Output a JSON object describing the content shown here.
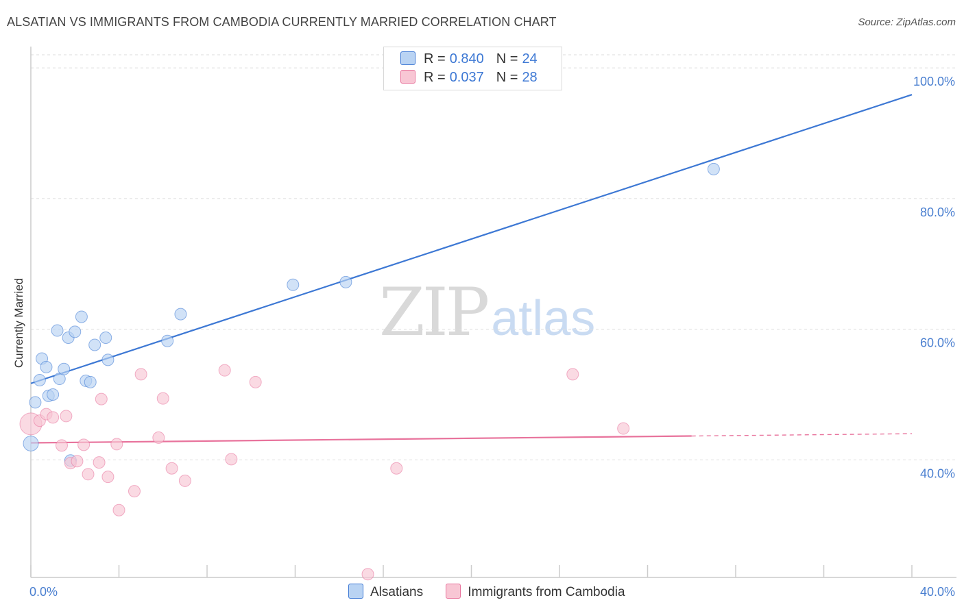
{
  "title": "ALSATIAN VS IMMIGRANTS FROM CAMBODIA CURRENTLY MARRIED CORRELATION CHART",
  "source": "Source: ZipAtlas.com",
  "watermark": {
    "zip": "ZIP",
    "atlas": "atlas"
  },
  "colors": {
    "blue": "#3d78d4",
    "blue_fill": "#b9d3f3",
    "pink": "#e8739c",
    "pink_fill": "#f8c6d4",
    "grid": "#dddddd"
  },
  "legend": {
    "rows": [
      {
        "r_label": "R =",
        "r_value": "0.840",
        "n_label": "N =",
        "n_value": "24"
      },
      {
        "r_label": "R =",
        "r_value": "0.037",
        "n_label": "N =",
        "n_value": "28"
      }
    ]
  },
  "bottom_legend": {
    "series1": "Alsatians",
    "series2": "Immigrants from Cambodia"
  },
  "chart_data": {
    "type": "scatter",
    "title": "ALSATIAN VS IMMIGRANTS FROM CAMBODIA CURRENTLY MARRIED CORRELATION CHART",
    "xlabel": "",
    "ylabel": "Currently Married",
    "xlim": [
      0,
      40
    ],
    "ylim": [
      22,
      102
    ],
    "x_tick_labels": [
      "0.0%",
      "40.0%"
    ],
    "y_ticks": [
      40,
      60,
      80,
      100
    ],
    "y_tick_labels": [
      "40.0%",
      "60.0%",
      "80.0%",
      "100.0%"
    ],
    "grid": true,
    "series": [
      {
        "name": "Alsatians",
        "color": "#3d78d4",
        "r": "0.840",
        "n": "24",
        "points": [
          [
            0.0,
            42.5
          ],
          [
            0.2,
            48.8
          ],
          [
            0.4,
            52.2
          ],
          [
            0.5,
            55.5
          ],
          [
            0.7,
            54.2
          ],
          [
            0.8,
            49.8
          ],
          [
            1.0,
            50.0
          ],
          [
            1.2,
            59.8
          ],
          [
            1.3,
            52.4
          ],
          [
            1.5,
            53.9
          ],
          [
            1.7,
            58.7
          ],
          [
            2.0,
            59.6
          ],
          [
            2.3,
            61.9
          ],
          [
            2.5,
            52.1
          ],
          [
            2.7,
            51.9
          ],
          [
            2.9,
            57.6
          ],
          [
            3.4,
            58.7
          ],
          [
            3.5,
            55.3
          ],
          [
            6.2,
            58.2
          ],
          [
            6.8,
            62.3
          ],
          [
            11.9,
            66.8
          ],
          [
            14.3,
            67.2
          ],
          [
            31.0,
            84.5
          ],
          [
            1.8,
            39.9
          ]
        ],
        "trend": {
          "x": [
            0,
            40
          ],
          "y": [
            51.7,
            95.9
          ],
          "dashed_from": null
        }
      },
      {
        "name": "Immigrants from Cambodia",
        "color": "#e8739c",
        "r": "0.037",
        "n": "28",
        "points": [
          [
            0.0,
            45.5
          ],
          [
            0.4,
            46.0
          ],
          [
            0.7,
            47.0
          ],
          [
            1.0,
            46.5
          ],
          [
            1.4,
            42.2
          ],
          [
            1.6,
            46.7
          ],
          [
            1.8,
            39.5
          ],
          [
            2.1,
            39.8
          ],
          [
            2.4,
            42.3
          ],
          [
            2.6,
            37.8
          ],
          [
            3.1,
            39.6
          ],
          [
            3.2,
            49.3
          ],
          [
            3.5,
            37.4
          ],
          [
            3.9,
            42.4
          ],
          [
            4.0,
            32.3
          ],
          [
            4.7,
            35.2
          ],
          [
            5.0,
            53.1
          ],
          [
            5.8,
            43.4
          ],
          [
            6.0,
            49.4
          ],
          [
            6.4,
            38.7
          ],
          [
            7.0,
            36.8
          ],
          [
            8.8,
            53.7
          ],
          [
            9.1,
            40.1
          ],
          [
            10.2,
            51.9
          ],
          [
            15.3,
            22.5
          ],
          [
            16.6,
            38.7
          ],
          [
            24.6,
            53.1
          ],
          [
            26.9,
            44.8
          ]
        ],
        "trend": {
          "x": [
            0,
            40
          ],
          "y": [
            42.6,
            44.0
          ],
          "dashed_from": 30
        }
      }
    ]
  }
}
